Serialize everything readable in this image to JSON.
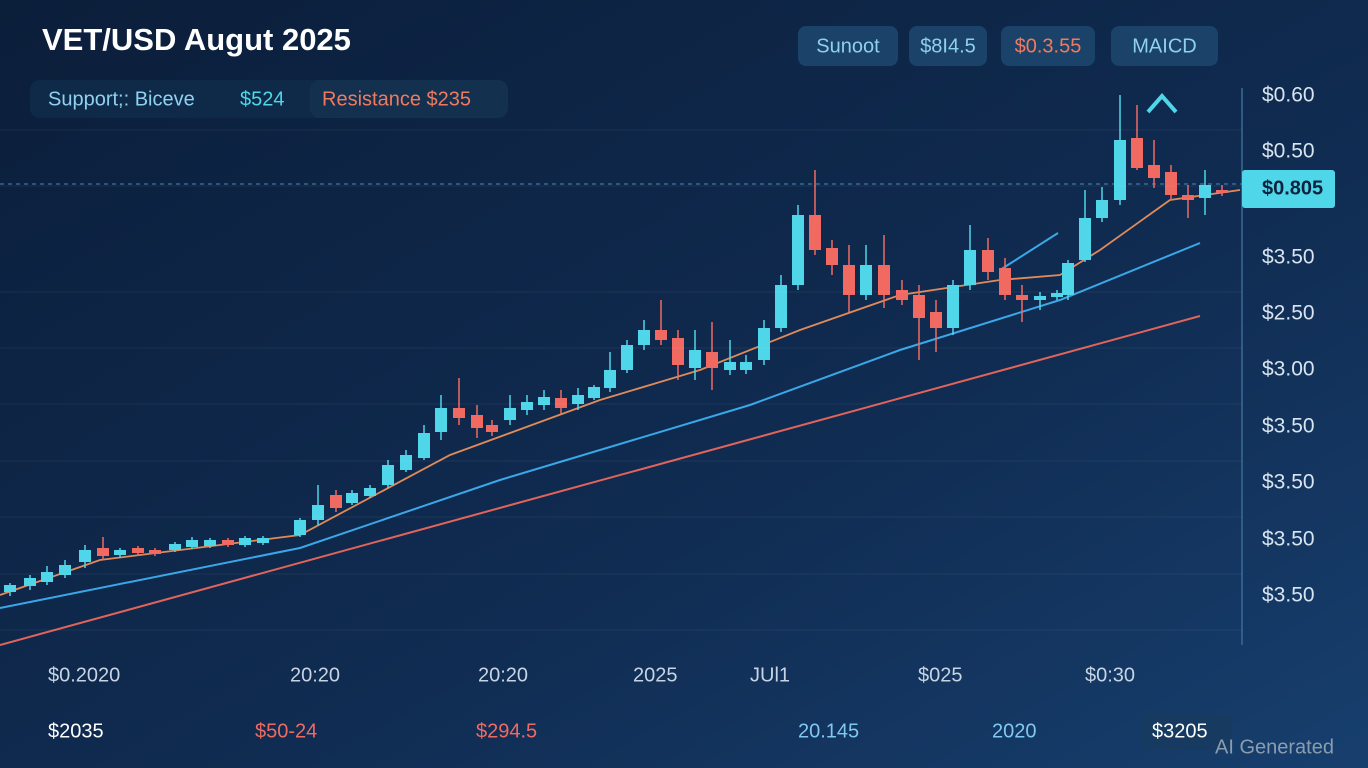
{
  "header": {
    "title": "VET/USD Augut 2025"
  },
  "badges": [
    "Sunoot",
    "$8I4.5",
    "$0.3.55",
    "MAICD"
  ],
  "legend": {
    "support_label": "Support;: Biceve",
    "support_value": "$524",
    "resistance": "Resistance $235"
  },
  "price_tag": "$0.805",
  "y_axis_labels": [
    "$0.60",
    "$0.50",
    "$3.50",
    "$2.50",
    "$3.00",
    "$3.50",
    "$3.50",
    "$3.50",
    "$3.50"
  ],
  "x_axis_labels": [
    "$0.2020",
    "20:20",
    "20:20",
    "2025",
    "JUl1",
    "$025",
    "$0:30"
  ],
  "footer_values": [
    "$2035",
    "$50-24",
    "$294.5",
    "20.145",
    "2020",
    "$3205"
  ],
  "watermark": "AI Generated"
}
